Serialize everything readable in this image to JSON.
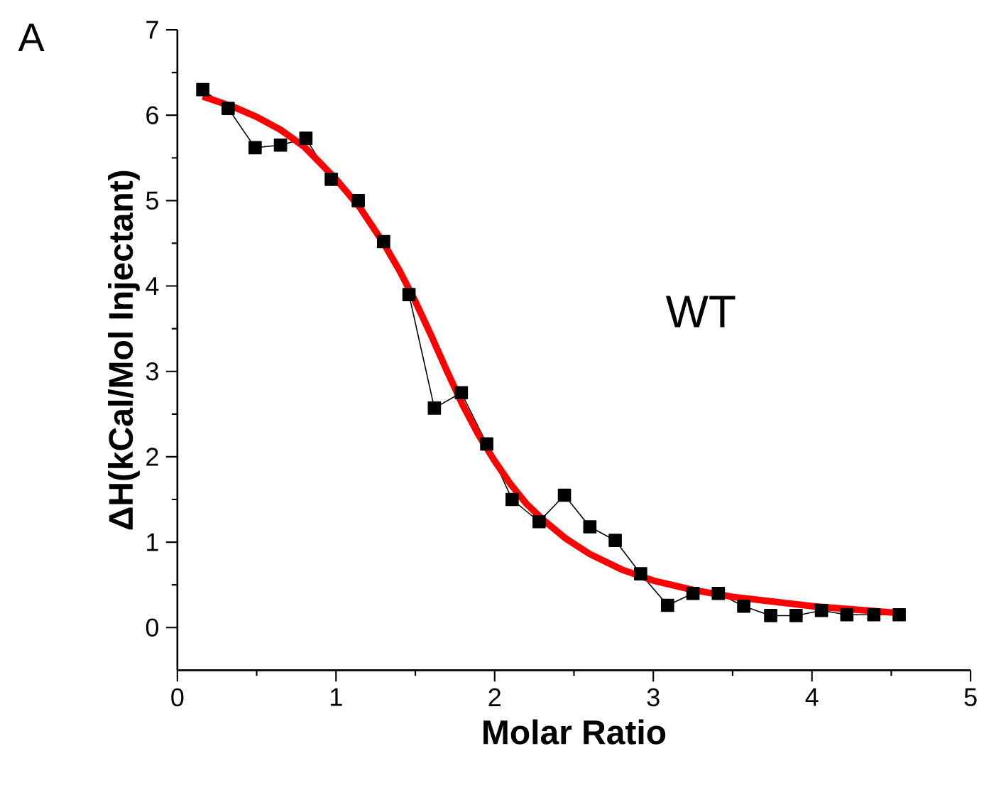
{
  "chart_data": {
    "type": "line",
    "xlabel": "Molar Ratio",
    "ylabel": "ΔH(kCal/Mol Injectant)",
    "annotations": [
      "A",
      "WT"
    ],
    "xlim": [
      0,
      5
    ],
    "ylim": [
      -0.5,
      7
    ],
    "xticks": [
      0,
      1,
      2,
      3,
      4,
      5
    ],
    "yticks": [
      0,
      1,
      2,
      3,
      4,
      5,
      6,
      7
    ],
    "grid": false,
    "series": [
      {
        "color": "#000000",
        "marker": "square",
        "line_style": "solid",
        "x": [
          0.16,
          0.32,
          0.49,
          0.65,
          0.81,
          0.97,
          1.14,
          1.3,
          1.46,
          1.62,
          1.79,
          1.95,
          2.11,
          2.28,
          2.44,
          2.6,
          2.76,
          2.92,
          3.09,
          3.25,
          3.41,
          3.57,
          3.74,
          3.9,
          4.06,
          4.22,
          4.39,
          4.55
        ],
        "values": [
          6.3,
          6.08,
          5.62,
          5.65,
          5.73,
          5.25,
          5.0,
          4.52,
          3.9,
          2.57,
          2.75,
          2.15,
          1.5,
          1.24,
          1.55,
          1.18,
          1.02,
          0.63,
          0.26,
          0.4,
          0.4,
          0.25,
          0.14,
          0.14,
          0.2,
          0.15,
          0.15,
          0.15
        ]
      },
      {
        "color": "#ff0000",
        "marker": "none",
        "line_style": "solid",
        "x": [
          0.16,
          0.35,
          0.5,
          0.65,
          0.8,
          1.0,
          1.15,
          1.3,
          1.4,
          1.5,
          1.6,
          1.7,
          1.8,
          1.9,
          2.0,
          2.1,
          2.2,
          2.3,
          2.45,
          2.6,
          2.8,
          3.0,
          3.25,
          3.5,
          4.0,
          4.55
        ],
        "values": [
          6.22,
          6.1,
          5.98,
          5.83,
          5.63,
          5.25,
          4.92,
          4.5,
          4.18,
          3.82,
          3.42,
          3.0,
          2.6,
          2.25,
          1.95,
          1.68,
          1.45,
          1.27,
          1.04,
          0.86,
          0.68,
          0.55,
          0.44,
          0.36,
          0.25,
          0.17
        ]
      }
    ]
  }
}
